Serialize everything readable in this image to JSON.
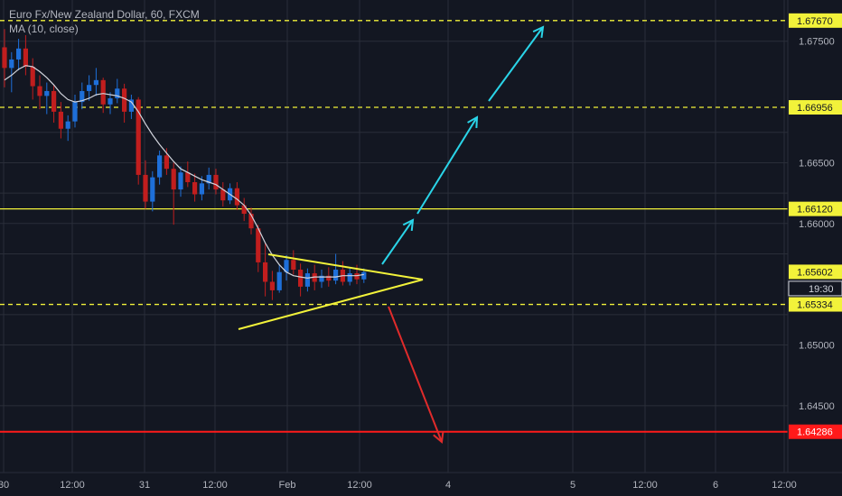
{
  "legend": {
    "title": "Euro Fx/New Zealand Dollar, 60, FXCM",
    "indicator": "MA (10, close)"
  },
  "price_scale": {
    "ticks": [
      "1.67500",
      "1.66500",
      "1.66000",
      "1.65000",
      "1.64500"
    ],
    "badges": [
      {
        "text": "1.67670",
        "value": 1.6767
      },
      {
        "text": "1.66956",
        "value": 1.66956
      },
      {
        "text": "1.66120",
        "value": 1.6612
      },
      {
        "text": "1.65602",
        "value": 1.65602
      },
      {
        "text": "19:30",
        "value": 1.65465
      },
      {
        "text": "1.65334",
        "value": 1.65334
      },
      {
        "text": "1.64286",
        "value": 1.64286
      }
    ]
  },
  "time_scale": {
    "ticks": [
      "30",
      "12:00",
      "31",
      "12:00",
      "Feb",
      "12:00",
      "4",
      "5",
      "12:00",
      "6",
      "12:00"
    ]
  },
  "colors": {
    "background": "#131722",
    "grid": "#2a2e39",
    "bull": "#1e6fd9",
    "bear": "#c11e1e",
    "ma": "#d1d4dc",
    "level_yellow": "#f2f23a",
    "level_red": "#ff1a1a",
    "arrow_cyan": "#2ad4e8",
    "arrow_red": "#e02b2b"
  },
  "chart_data": {
    "type": "candlestick",
    "symbol": "Euro Fx/New Zealand Dollar, 60, FXCM",
    "ylim": [
      1.6395,
      1.6778
    ],
    "levels": [
      {
        "value": 1.6767,
        "style": "dashed",
        "color": "yellow"
      },
      {
        "value": 1.66956,
        "style": "dashed",
        "color": "yellow"
      },
      {
        "value": 1.6612,
        "style": "solid",
        "color": "yellow"
      },
      {
        "value": 1.65334,
        "style": "dashed",
        "color": "yellow"
      },
      {
        "value": 1.64286,
        "style": "solid",
        "color": "red"
      }
    ],
    "candles": [
      [
        1.6745,
        1.676,
        1.6712,
        1.6728
      ],
      [
        1.6728,
        1.6741,
        1.6708,
        1.6735
      ],
      [
        1.6735,
        1.6752,
        1.6726,
        1.6744
      ],
      [
        1.6744,
        1.6755,
        1.6722,
        1.6729
      ],
      [
        1.6729,
        1.6736,
        1.6702,
        1.6713
      ],
      [
        1.6713,
        1.6722,
        1.6694,
        1.6705
      ],
      [
        1.6705,
        1.6716,
        1.669,
        1.6709
      ],
      [
        1.6709,
        1.6714,
        1.6683,
        1.6692
      ],
      [
        1.6692,
        1.67,
        1.667,
        1.6678
      ],
      [
        1.6678,
        1.6689,
        1.6668,
        1.6684
      ],
      [
        1.6684,
        1.6706,
        1.6679,
        1.67
      ],
      [
        1.67,
        1.6716,
        1.6694,
        1.6709
      ],
      [
        1.6709,
        1.6722,
        1.6701,
        1.6714
      ],
      [
        1.6714,
        1.6728,
        1.6705,
        1.6718
      ],
      [
        1.6718,
        1.672,
        1.6691,
        1.6698
      ],
      [
        1.6698,
        1.6708,
        1.669,
        1.6703
      ],
      [
        1.6703,
        1.6719,
        1.6699,
        1.6711
      ],
      [
        1.6711,
        1.6715,
        1.6683,
        1.6692
      ],
      [
        1.6692,
        1.6706,
        1.6686,
        1.6702
      ],
      [
        1.6702,
        1.6704,
        1.6632,
        1.664
      ],
      [
        1.664,
        1.6652,
        1.6612,
        1.6618
      ],
      [
        1.6618,
        1.6643,
        1.661,
        1.6638
      ],
      [
        1.6638,
        1.666,
        1.6632,
        1.6656
      ],
      [
        1.6656,
        1.6662,
        1.664,
        1.6645
      ],
      [
        1.6645,
        1.665,
        1.6599,
        1.6628
      ],
      [
        1.6628,
        1.6647,
        1.6622,
        1.6642
      ],
      [
        1.6642,
        1.6651,
        1.663,
        1.6634
      ],
      [
        1.6634,
        1.6641,
        1.6618,
        1.6624
      ],
      [
        1.6624,
        1.6639,
        1.6619,
        1.6633
      ],
      [
        1.6633,
        1.6646,
        1.6628,
        1.664
      ],
      [
        1.664,
        1.6645,
        1.6624,
        1.6628
      ],
      [
        1.6628,
        1.6634,
        1.6614,
        1.6619
      ],
      [
        1.6619,
        1.6633,
        1.6616,
        1.6629
      ],
      [
        1.6629,
        1.6634,
        1.6611,
        1.6615
      ],
      [
        1.6615,
        1.6621,
        1.6602,
        1.6608
      ],
      [
        1.6608,
        1.6613,
        1.6591,
        1.6596
      ],
      [
        1.6596,
        1.6599,
        1.656,
        1.6568
      ],
      [
        1.6568,
        1.6584,
        1.654,
        1.6552
      ],
      [
        1.6552,
        1.6561,
        1.6537,
        1.6545
      ],
      [
        1.6545,
        1.6566,
        1.6543,
        1.656
      ],
      [
        1.656,
        1.6574,
        1.6553,
        1.657
      ],
      [
        1.657,
        1.6578,
        1.6558,
        1.6562
      ],
      [
        1.6562,
        1.6567,
        1.654,
        1.6548
      ],
      [
        1.6548,
        1.6563,
        1.6544,
        1.6559
      ],
      [
        1.6559,
        1.6566,
        1.6545,
        1.6552
      ],
      [
        1.6552,
        1.6562,
        1.6547,
        1.6557
      ],
      [
        1.6557,
        1.6564,
        1.6548,
        1.6553
      ],
      [
        1.6553,
        1.6575,
        1.655,
        1.6562
      ],
      [
        1.6562,
        1.6569,
        1.6549,
        1.6552
      ],
      [
        1.6552,
        1.6563,
        1.6549,
        1.6559
      ],
      [
        1.6559,
        1.6566,
        1.655,
        1.6554
      ],
      [
        1.6554,
        1.6563,
        1.6551,
        1.656
      ]
    ],
    "moving_average": {
      "name": "MA (10, close)",
      "values": [
        1.6718,
        1.6722,
        1.6727,
        1.673,
        1.6729,
        1.6725,
        1.672,
        1.6714,
        1.6707,
        1.6702,
        1.67,
        1.6701,
        1.6703,
        1.6706,
        1.6707,
        1.6706,
        1.6705,
        1.6703,
        1.67,
        1.6692,
        1.6682,
        1.6673,
        1.6665,
        1.6658,
        1.6651,
        1.6645,
        1.6642,
        1.6639,
        1.6636,
        1.6634,
        1.6632,
        1.6628,
        1.6624,
        1.662,
        1.6615,
        1.6607,
        1.6596,
        1.6584,
        1.6574,
        1.6566,
        1.656,
        1.6557,
        1.6556,
        1.6555,
        1.6556,
        1.6556,
        1.6556,
        1.6556,
        1.6557,
        1.6557,
        1.6557,
        1.6558
      ]
    }
  }
}
